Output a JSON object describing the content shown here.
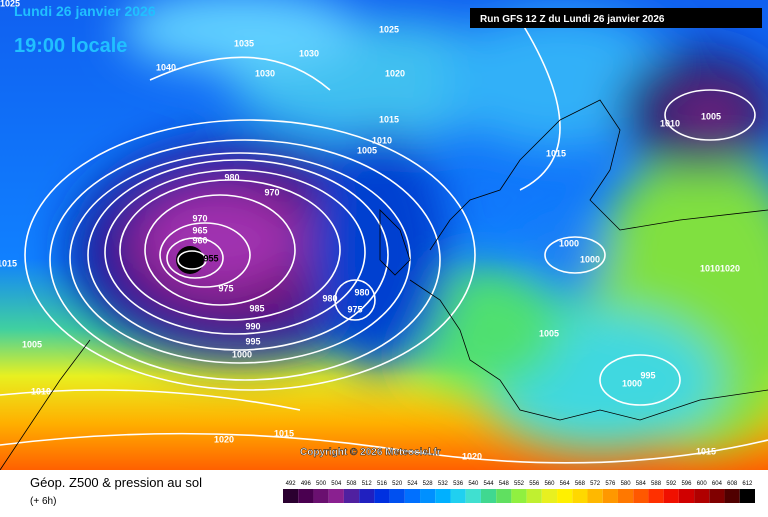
{
  "header": {
    "date": "Lundi 26 janvier 2026",
    "time": "19:00 locale",
    "run": "Run GFS 12 Z du Lundi 26 janvier 2026"
  },
  "copyright": "Copyright © 2026 Meteociel.fr",
  "footer": {
    "title": "Géop. Z500 & pression au sol",
    "step": "(+ 6h)"
  },
  "isobar_labels": [
    "1025",
    "1035",
    "1040",
    "1030",
    "1030",
    "1025",
    "1020",
    "1015",
    "1010",
    "1005",
    "1015",
    "1010",
    "1005",
    "980",
    "970",
    "970",
    "965",
    "960",
    "955",
    "975",
    "985",
    "990",
    "995",
    "1000",
    "980",
    "980",
    "975",
    "1000",
    "1000",
    "1015",
    "1010",
    "1020",
    "1005",
    "1010",
    "1005",
    "995",
    "1000",
    "1020",
    "1015",
    "1020",
    "1015"
  ],
  "colorbar": {
    "ticks": [
      492,
      496,
      500,
      504,
      508,
      512,
      516,
      520,
      524,
      528,
      532,
      536,
      540,
      544,
      548,
      552,
      556,
      560,
      564,
      568,
      572,
      576,
      580,
      584,
      588,
      592,
      596,
      600,
      604,
      608,
      612
    ],
    "colors": [
      "#2a0030",
      "#4a0050",
      "#6a1070",
      "#8a2090",
      "#5020a0",
      "#2020c0",
      "#0030e0",
      "#0050f0",
      "#0070ff",
      "#0090ff",
      "#00b0ff",
      "#20d0f0",
      "#40e0d0",
      "#40d890",
      "#60e060",
      "#90f040",
      "#c0f030",
      "#e8f020",
      "#fff000",
      "#ffd800",
      "#ffb800",
      "#ff9800",
      "#ff7800",
      "#ff5800",
      "#ff3000",
      "#f01000",
      "#d00000",
      "#b00000",
      "#800000",
      "#500000",
      "#000000"
    ]
  }
}
